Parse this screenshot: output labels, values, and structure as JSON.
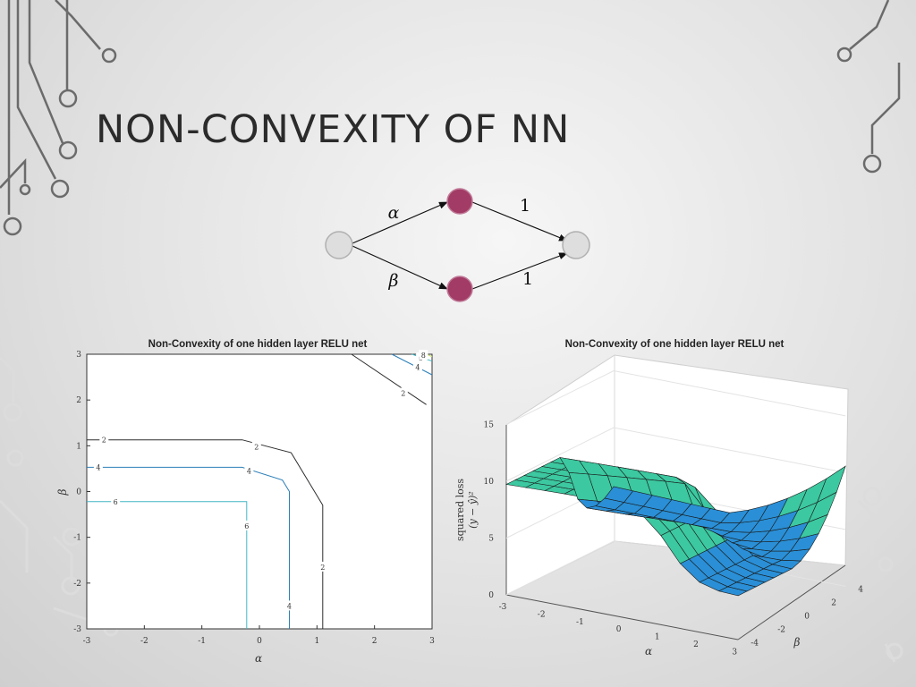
{
  "slide": {
    "title": "NON-CONVEXITY OF NN"
  },
  "network": {
    "weights": {
      "input_to_top": "α",
      "input_to_bottom": "β",
      "top_to_output": "1",
      "bottom_to_output": "1"
    },
    "colors": {
      "hidden_node": "#a23b65",
      "io_node": "#dedede"
    }
  },
  "chart_data": [
    {
      "type": "contour",
      "title": "Non-Convexity of one hidden layer RELU net",
      "xlabel": "α",
      "ylabel": "β",
      "xlim": [
        -3,
        3
      ],
      "ylim": [
        -3,
        3
      ],
      "x_ticks": [
        "-3",
        "-2",
        "-1",
        "0",
        "1",
        "2",
        "3"
      ],
      "y_ticks": [
        "-3",
        "-2",
        "-1",
        "0",
        "1",
        "2",
        "3"
      ],
      "grid": false,
      "levels": [
        {
          "value": "2",
          "color": "#2d2d2d"
        },
        {
          "value": "4",
          "color": "#2c7fb8"
        },
        {
          "value": "6",
          "color": "#41b6c4"
        },
        {
          "value": "8",
          "color": "#c7e070"
        }
      ]
    },
    {
      "type": "surface",
      "title": "Non-Convexity of one hidden layer RELU net",
      "xlabel": "α",
      "ylabel": "β",
      "zlabel": "squared loss",
      "zlabel2": "(y − ŷ)²",
      "x_ticks": [
        "-3",
        "-2",
        "-1",
        "0",
        "1",
        "2",
        "3"
      ],
      "y_ticks": [
        "-4",
        "-2",
        "0",
        "2",
        "4"
      ],
      "z_ticks": [
        "0",
        "5",
        "10",
        "15"
      ],
      "zlim": [
        0,
        15
      ],
      "grid": true,
      "colors": {
        "high": "#3cc8a0",
        "mid": "#2a8fd6",
        "low": "#3b3fb0"
      }
    }
  ]
}
